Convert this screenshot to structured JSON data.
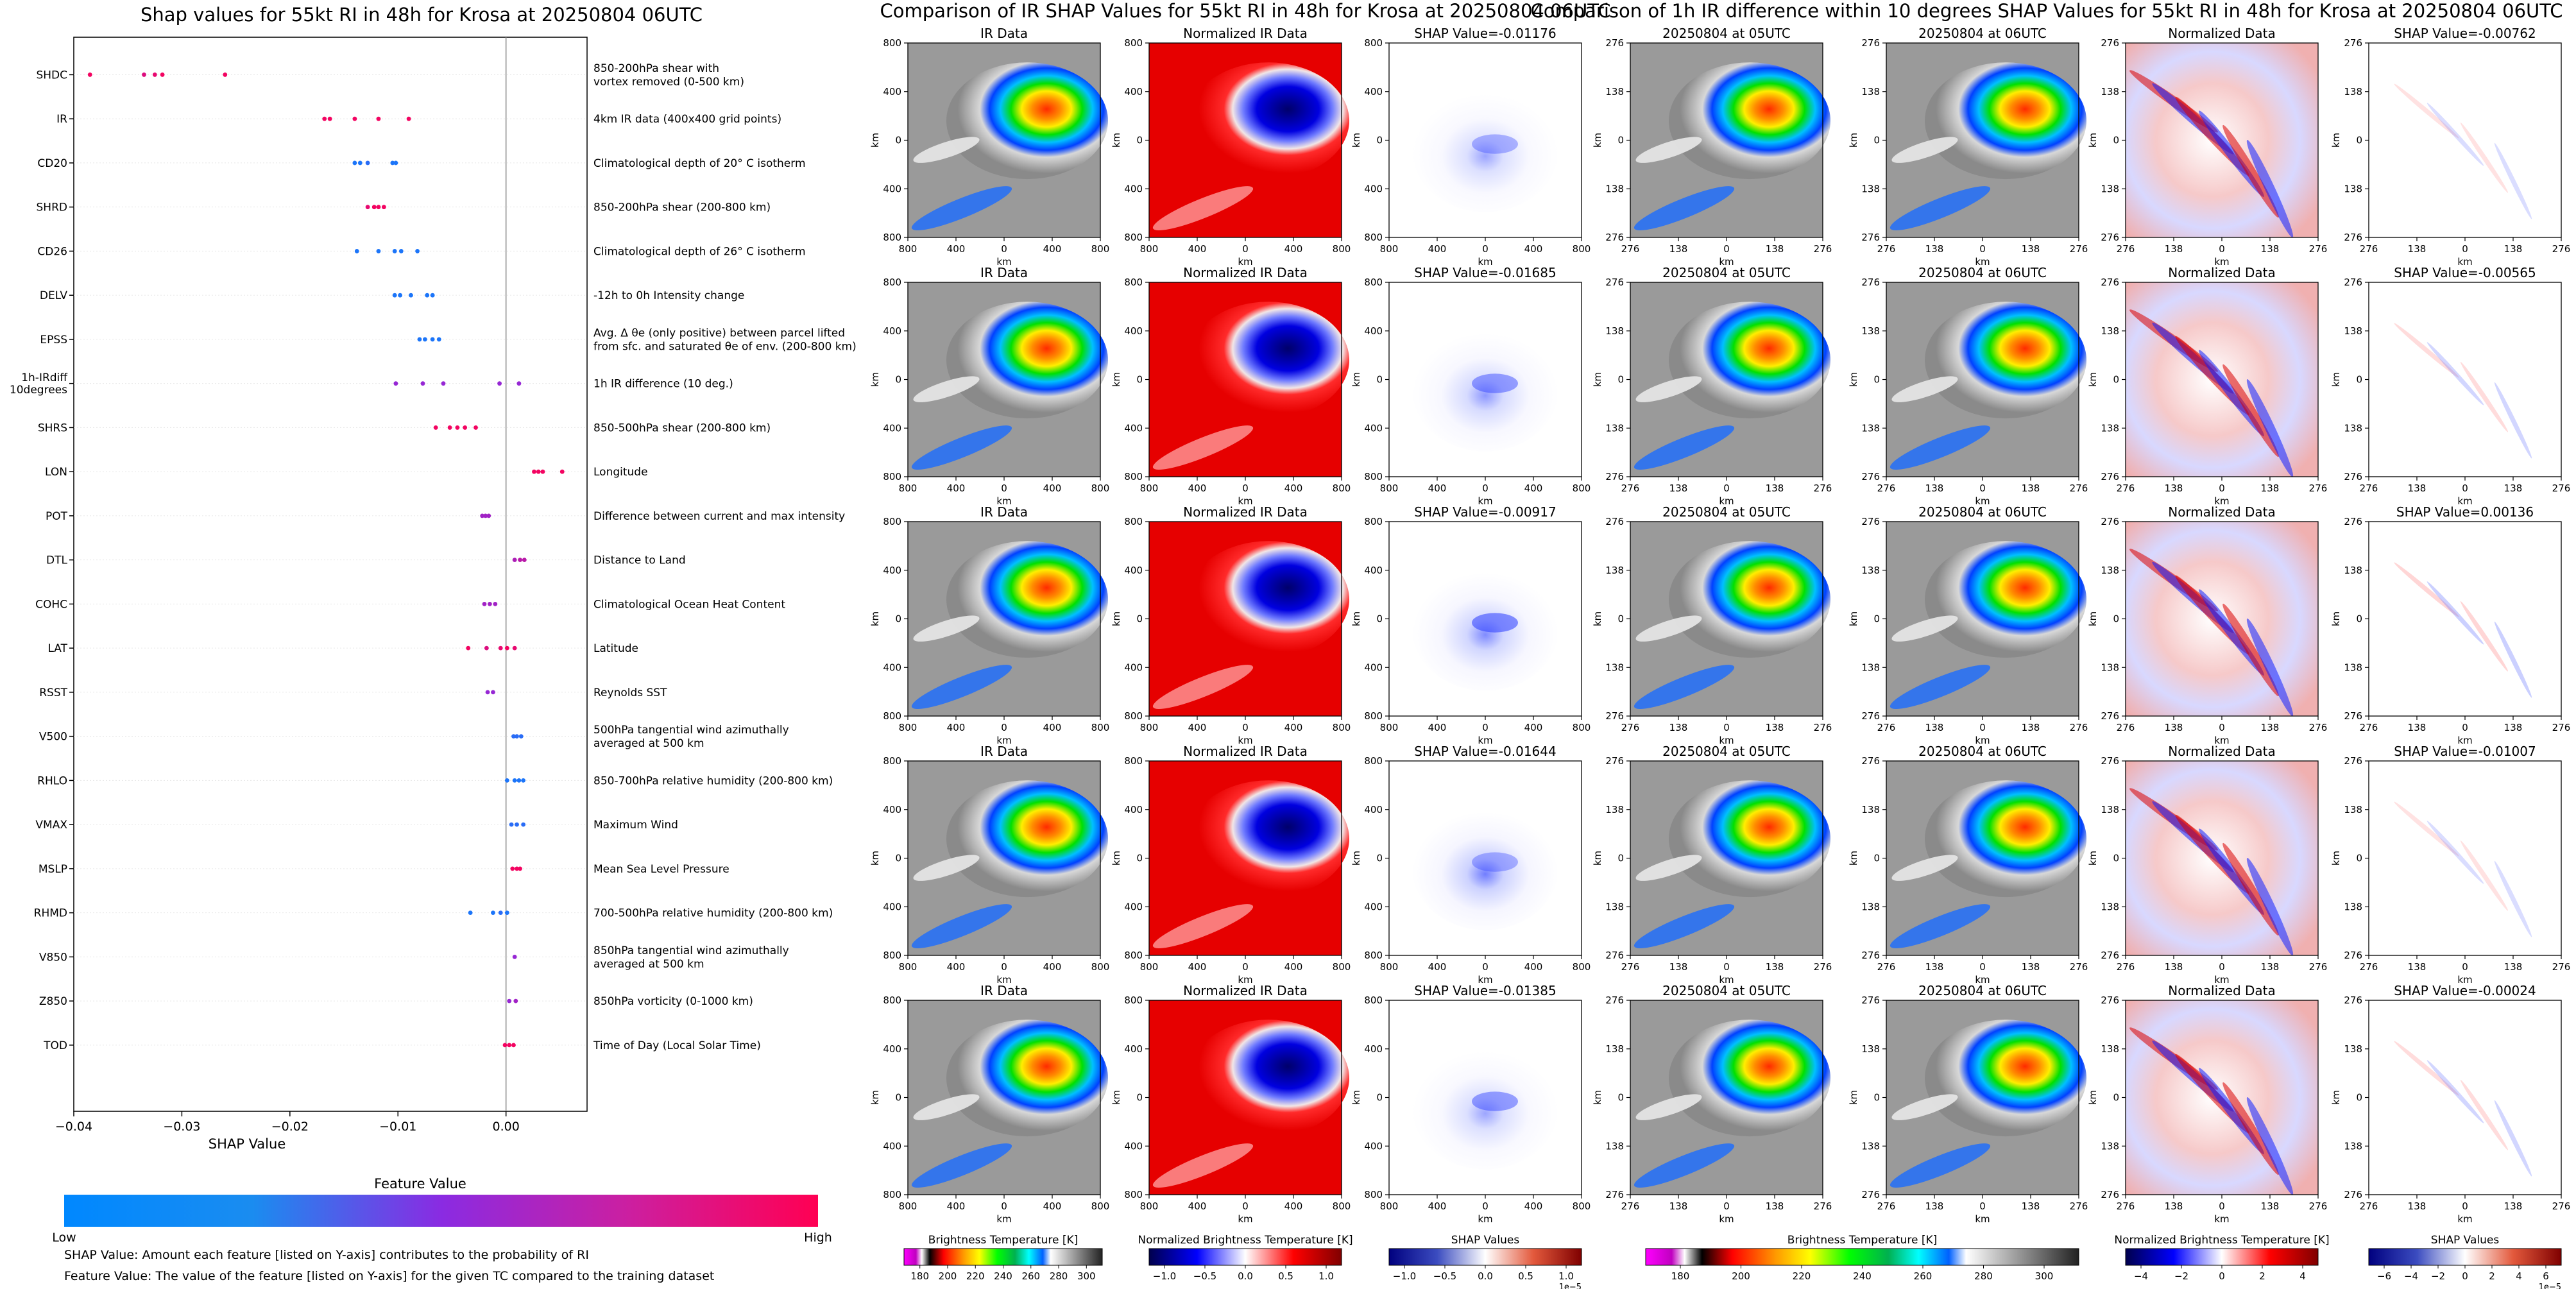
{
  "titles": {
    "left": "Shap values for 55kt RI in 48h for Krosa at 20250804 06UTC",
    "middle": "Comparison of IR SHAP Values for 55kt RI in 48h for Krosa at 20250804 06UTC",
    "right": "Comparison of 1h IR difference within 10 degrees SHAP Values for 55kt RI in 48h for Krosa at 20250804 06UTC"
  },
  "notes": [
    "SHAP Value: Amount each feature [listed on Y-axis] contributes to the probability of RI",
    "Feature Value: The value of the feature [listed on Y-axis] for the given TC compared to the training dataset"
  ],
  "feature_colorbar": {
    "title": "Feature Value",
    "low": "Low",
    "high": "High",
    "colors": [
      "#0088ff",
      "#8a2be2",
      "#ff0053"
    ]
  },
  "chart_data": [
    {
      "type": "scatter",
      "subtype": "shap-beeswarm",
      "xlabel": "SHAP Value",
      "xlim": [
        -0.04,
        0.0075
      ],
      "xticks": [
        "−0.04",
        "−0.03",
        "−0.02",
        "−0.01",
        "0.00"
      ],
      "features": [
        {
          "name": "SHDC",
          "description": "850-200hPa shear with\nvortex removed (0-500 km)",
          "points": [
            [
              -0.0385,
              0.95
            ],
            [
              -0.0335,
              0.85
            ],
            [
              -0.0325,
              0.9
            ],
            [
              -0.0318,
              0.95
            ],
            [
              -0.026,
              0.95
            ]
          ]
        },
        {
          "name": "IR",
          "description": "4km IR data (400x400 grid points)",
          "points": [
            [
              -0.0168,
              0.95
            ],
            [
              -0.0163,
              0.95
            ],
            [
              -0.014,
              0.95
            ],
            [
              -0.0118,
              0.95
            ],
            [
              -0.009,
              0.95
            ]
          ]
        },
        {
          "name": "CD20",
          "description": "Climatological depth of 20° C isotherm",
          "points": [
            [
              -0.014,
              0.1
            ],
            [
              -0.0135,
              0.1
            ],
            [
              -0.0128,
              0.15
            ],
            [
              -0.0105,
              0.1
            ],
            [
              -0.0102,
              0.1
            ]
          ]
        },
        {
          "name": "SHRD",
          "description": "850-200hPa shear (200-800 km)",
          "points": [
            [
              -0.0128,
              0.9
            ],
            [
              -0.0122,
              0.95
            ],
            [
              -0.0118,
              0.95
            ],
            [
              -0.0113,
              0.95
            ]
          ]
        },
        {
          "name": "CD26",
          "description": "Climatological depth of 26° C isotherm",
          "points": [
            [
              -0.0138,
              0.1
            ],
            [
              -0.0118,
              0.1
            ],
            [
              -0.0103,
              0.1
            ],
            [
              -0.0097,
              0.1
            ],
            [
              -0.0082,
              0.1
            ]
          ]
        },
        {
          "name": "DELV",
          "description": "-12h to 0h Intensity change",
          "points": [
            [
              -0.0103,
              0.1
            ],
            [
              -0.0098,
              0.1
            ],
            [
              -0.0088,
              0.1
            ],
            [
              -0.0073,
              0.1
            ],
            [
              -0.0068,
              0.1
            ]
          ]
        },
        {
          "name": "EPSS",
          "description": "Avg. Δ θe (only positive) between parcel lifted\nfrom sfc. and saturated θe of env. (200-800 km)",
          "points": [
            [
              -0.008,
              0.1
            ],
            [
              -0.0075,
              0.1
            ],
            [
              -0.0068,
              0.1
            ],
            [
              -0.0062,
              0.1
            ]
          ]
        },
        {
          "name": "1h-IRdiff\n10degrees",
          "description": "1h IR difference (10 deg.)",
          "points": [
            [
              -0.0102,
              0.55
            ],
            [
              -0.0077,
              0.55
            ],
            [
              -0.0058,
              0.55
            ],
            [
              -0.0006,
              0.55
            ],
            [
              0.0012,
              0.55
            ]
          ]
        },
        {
          "name": "SHRS",
          "description": "850-500hPa shear (200-800 km)",
          "points": [
            [
              -0.0065,
              0.95
            ],
            [
              -0.0052,
              0.95
            ],
            [
              -0.0045,
              0.95
            ],
            [
              -0.0038,
              0.95
            ],
            [
              -0.0028,
              0.95
            ]
          ]
        },
        {
          "name": "LON",
          "description": "Longitude",
          "points": [
            [
              0.0026,
              0.95
            ],
            [
              0.003,
              0.95
            ],
            [
              0.0034,
              0.95
            ],
            [
              0.0052,
              0.95
            ]
          ]
        },
        {
          "name": "POT",
          "description": "Difference between current and max intensity",
          "points": [
            [
              -0.0022,
              0.6
            ],
            [
              -0.0019,
              0.6
            ],
            [
              -0.0016,
              0.6
            ]
          ]
        },
        {
          "name": "DTL",
          "description": "Distance to Land",
          "points": [
            [
              0.0008,
              0.65
            ],
            [
              0.0013,
              0.7
            ],
            [
              0.0017,
              0.7
            ]
          ]
        },
        {
          "name": "COHC",
          "description": "Climatological Ocean Heat Content",
          "points": [
            [
              -0.002,
              0.6
            ],
            [
              -0.0015,
              0.6
            ],
            [
              -0.001,
              0.6
            ]
          ]
        },
        {
          "name": "LAT",
          "description": "Latitude",
          "points": [
            [
              -0.0035,
              0.95
            ],
            [
              -0.0018,
              0.85
            ],
            [
              -0.0005,
              0.9
            ],
            [
              0.0001,
              0.95
            ],
            [
              0.0008,
              0.9
            ]
          ]
        },
        {
          "name": "RSST",
          "description": "Reynolds SST",
          "points": [
            [
              -0.0017,
              0.55
            ],
            [
              -0.0012,
              0.55
            ]
          ]
        },
        {
          "name": "V500",
          "description": "500hPa tangential wind azimuthally\naveraged at 500 km",
          "points": [
            [
              0.0007,
              0.15
            ],
            [
              0.001,
              0.15
            ],
            [
              0.0014,
              0.15
            ]
          ]
        },
        {
          "name": "RHLO",
          "description": "850-700hPa relative humidity (200-800 km)",
          "points": [
            [
              0.0001,
              0.1
            ],
            [
              0.0008,
              0.1
            ],
            [
              0.0012,
              0.1
            ],
            [
              0.0016,
              0.1
            ]
          ]
        },
        {
          "name": "VMAX",
          "description": "Maximum Wind",
          "points": [
            [
              0.0005,
              0.15
            ],
            [
              0.001,
              0.15
            ],
            [
              0.0016,
              0.15
            ]
          ]
        },
        {
          "name": "MSLP",
          "description": "Mean Sea Level Pressure",
          "points": [
            [
              0.0006,
              0.95
            ],
            [
              0.001,
              0.95
            ],
            [
              0.0013,
              0.95
            ]
          ]
        },
        {
          "name": "RHMD",
          "description": "700-500hPa relative humidity (200-800 km)",
          "points": [
            [
              -0.0033,
              0.1
            ],
            [
              -0.0012,
              0.1
            ],
            [
              -0.0005,
              0.15
            ],
            [
              0.0001,
              0.1
            ]
          ]
        },
        {
          "name": "V850",
          "description": "850hPa tangential wind azimuthally\naveraged at 500 km",
          "points": [
            [
              0.0008,
              0.55
            ]
          ]
        },
        {
          "name": "Z850",
          "description": "850hPa vorticity (0-1000 km)",
          "points": [
            [
              0.0003,
              0.55
            ],
            [
              0.0009,
              0.6
            ]
          ]
        },
        {
          "name": "TOD",
          "description": "Time of Day (Local Solar Time)",
          "points": [
            [
              -0.0001,
              0.95
            ],
            [
              0.0003,
              0.95
            ],
            [
              0.0007,
              0.95
            ]
          ]
        }
      ]
    },
    {
      "type": "heatmap",
      "description": "IR SHAP comparison grid (5 rows x 3 panels)",
      "panel_titles": [
        "IR Data",
        "Normalized IR Data"
      ],
      "shap_titles": [
        "SHAP Value=-0.01176",
        "SHAP Value=-0.01685",
        "SHAP Value=-0.00917",
        "SHAP Value=-0.01644",
        "SHAP Value=-0.01385"
      ],
      "xlabel": "km",
      "ylabel": "km",
      "xticks": [
        "800",
        "400",
        "0",
        "400",
        "800"
      ],
      "yticks": [
        "800",
        "400",
        "0",
        "400",
        "800"
      ]
    },
    {
      "type": "heatmap",
      "description": "1h IR difference SHAP comparison grid (5 rows x 4 panels)",
      "panel_titles": [
        "20250804 at 05UTC",
        "20250804 at 06UTC",
        "Normalized Data"
      ],
      "shap_titles": [
        "SHAP Value=-0.00762",
        "SHAP Value=-0.00565",
        "SHAP Value=0.00136",
        "SHAP Value=-0.01007",
        "SHAP Value=-0.00024"
      ],
      "xlabel": "km",
      "ylabel": "km",
      "xticks": [
        "276",
        "138",
        "0",
        "138",
        "276"
      ],
      "yticks": [
        "276",
        "138",
        "0",
        "138",
        "276"
      ]
    }
  ],
  "colorbars": [
    {
      "label": "Brightness Temperature [K]",
      "ticks": [
        "180",
        "200",
        "220",
        "240",
        "260",
        "280",
        "300"
      ]
    },
    {
      "label": "Normalized Brightness Temperature [K]",
      "ticks": [
        "−1.0",
        "−0.5",
        "0.0",
        "0.5",
        "1.0"
      ]
    },
    {
      "label": "SHAP Values",
      "ticks": [
        "−1.0",
        "−0.5",
        "0.0",
        "0.5",
        "1.0"
      ],
      "offset": "1e−5"
    },
    {
      "label": "Brightness Temperature [K]",
      "ticks": [
        "180",
        "200",
        "220",
        "240",
        "260",
        "280",
        "300"
      ]
    },
    {
      "label": "Normalized Brightness Temperature [K]",
      "ticks": [
        "−4",
        "−2",
        "0",
        "2",
        "4"
      ]
    },
    {
      "label": "SHAP Values",
      "ticks": [
        "−6",
        "−4",
        "−2",
        "0",
        "2",
        "4",
        "6"
      ],
      "offset": "1e−5"
    }
  ]
}
